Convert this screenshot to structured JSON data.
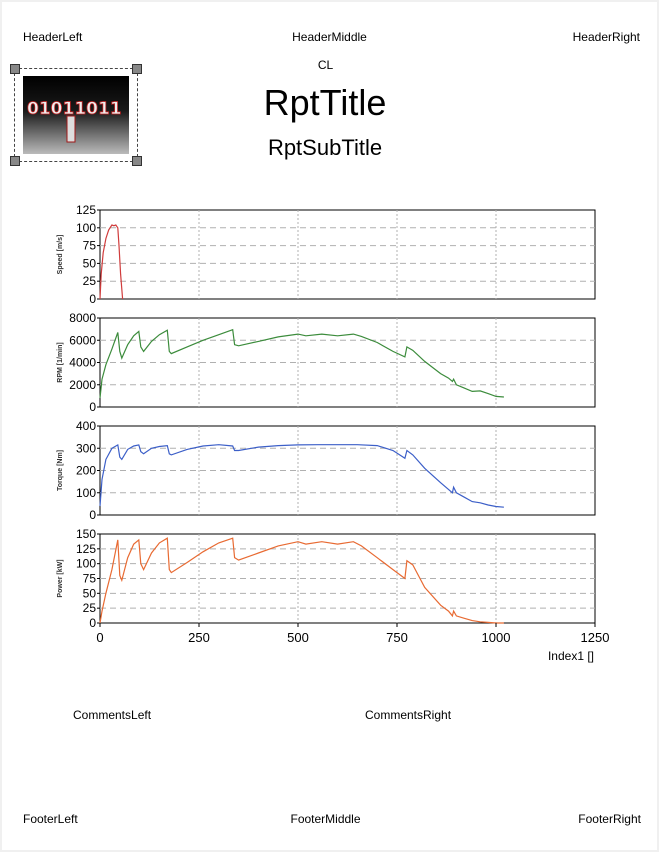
{
  "header": {
    "left": "HeaderLeft",
    "middle": "HeaderMiddle",
    "right": "HeaderRight"
  },
  "cl": "CL",
  "title": "RptTitle",
  "subtitle": "RptSubTitle",
  "comments": {
    "left": "CommentsLeft",
    "right": "CommentsRight"
  },
  "footer": {
    "left": "FooterLeft",
    "middle": "FooterMiddle",
    "right": "FooterRight"
  },
  "logo": {
    "icon": "binary-digits-logo",
    "text": "01011011"
  },
  "colors": {
    "speed": "#d03c3c",
    "rpm": "#3c8c3c",
    "torque": "#3c5fc8",
    "power": "#e86a32",
    "grid": "#b0b0b0"
  },
  "chart_data": {
    "type": "line",
    "xlabel": "Index1 []",
    "xlim": [
      0,
      1250
    ],
    "xticks": [
      "0",
      "250",
      "500",
      "750",
      "1000",
      "1250"
    ],
    "panels": [
      {
        "name": "Speed [m/s]",
        "ylabel": "Speed [m/s]",
        "ylim": [
          0,
          125
        ],
        "yticks": [
          "0",
          "25",
          "50",
          "75",
          "100",
          "125"
        ],
        "color": "#d03c3c",
        "x": [
          0,
          3,
          8,
          15,
          22,
          30,
          35,
          40,
          45,
          48,
          52,
          57
        ],
        "y": [
          0,
          35,
          65,
          85,
          97,
          104,
          103,
          104,
          100,
          75,
          35,
          0
        ]
      },
      {
        "name": "RPM [1/min]",
        "ylabel": "RPM [1/min]",
        "ylim": [
          0,
          8000
        ],
        "yticks": [
          "0",
          "2000",
          "4000",
          "6000",
          "8000"
        ],
        "color": "#3c8c3c",
        "x": [
          0,
          5,
          15,
          30,
          45,
          50,
          55,
          70,
          85,
          98,
          103,
          110,
          130,
          150,
          170,
          175,
          180,
          220,
          260,
          300,
          335,
          340,
          350,
          400,
          450,
          500,
          520,
          560,
          600,
          640,
          660,
          700,
          740,
          770,
          775,
          790,
          820,
          860,
          880,
          890,
          893,
          900,
          920,
          940,
          960,
          980,
          1000,
          1020
        ],
        "y": [
          800,
          2500,
          3800,
          5200,
          6700,
          5000,
          4400,
          5600,
          6400,
          6800,
          5400,
          5000,
          5900,
          6500,
          6900,
          5000,
          4800,
          5400,
          6000,
          6500,
          6950,
          5600,
          5500,
          5900,
          6300,
          6550,
          6400,
          6550,
          6400,
          6550,
          6350,
          5800,
          5000,
          4500,
          5400,
          5100,
          4100,
          3000,
          2600,
          2300,
          2500,
          2000,
          1700,
          1400,
          1450,
          1200,
          950,
          900
        ]
      },
      {
        "name": "Torque [Nm]",
        "ylabel": "Torque [Nm]",
        "ylim": [
          0,
          400
        ],
        "yticks": [
          "0",
          "100",
          "200",
          "300",
          "400"
        ],
        "color": "#3c5fc8",
        "x": [
          0,
          5,
          15,
          30,
          45,
          50,
          55,
          70,
          85,
          98,
          103,
          110,
          130,
          150,
          170,
          175,
          180,
          220,
          260,
          300,
          335,
          340,
          350,
          400,
          450,
          500,
          550,
          600,
          650,
          700,
          740,
          770,
          775,
          790,
          820,
          860,
          880,
          890,
          893,
          900,
          920,
          940,
          960,
          980,
          1000,
          1020
        ],
        "y": [
          40,
          160,
          250,
          300,
          315,
          260,
          250,
          295,
          310,
          315,
          285,
          275,
          300,
          308,
          312,
          275,
          270,
          295,
          310,
          316,
          310,
          290,
          290,
          305,
          312,
          315,
          316,
          316,
          316,
          312,
          290,
          255,
          290,
          270,
          210,
          145,
          115,
          100,
          125,
          100,
          80,
          60,
          55,
          45,
          38,
          35
        ]
      },
      {
        "name": "Power [kW]",
        "ylabel": "Power [kW]",
        "ylim": [
          0,
          150
        ],
        "yticks": [
          "0",
          "25",
          "50",
          "75",
          "100",
          "125",
          "150"
        ],
        "color": "#e86a32",
        "x": [
          0,
          5,
          15,
          30,
          45,
          50,
          55,
          70,
          85,
          98,
          103,
          110,
          130,
          150,
          170,
          175,
          180,
          220,
          260,
          300,
          335,
          340,
          350,
          400,
          450,
          500,
          520,
          560,
          600,
          640,
          660,
          700,
          740,
          770,
          775,
          790,
          820,
          860,
          880,
          890,
          893,
          900,
          920,
          940,
          960,
          980,
          1000,
          1020
        ],
        "y": [
          0,
          20,
          50,
          90,
          140,
          80,
          72,
          110,
          133,
          140,
          100,
          90,
          118,
          135,
          143,
          90,
          85,
          102,
          120,
          135,
          143,
          110,
          106,
          118,
          130,
          137,
          133,
          137,
          133,
          137,
          130,
          110,
          90,
          75,
          105,
          98,
          60,
          30,
          20,
          12,
          20,
          12,
          8,
          4,
          2,
          1,
          0,
          0
        ]
      }
    ]
  }
}
